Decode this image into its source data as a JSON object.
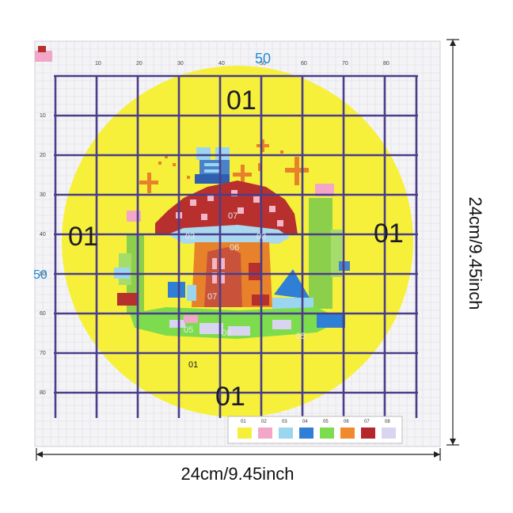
{
  "pattern": {
    "top_marker": "50",
    "left_marker": "50",
    "ruler_labels_top": [
      "10",
      "20",
      "30",
      "40",
      "50",
      "60",
      "70",
      "80"
    ],
    "ruler_labels_left": [
      "10",
      "20",
      "30",
      "40",
      "50",
      "60",
      "70",
      "80"
    ],
    "region_labels": {
      "top": "01",
      "left": "01",
      "right": "01",
      "bottom": "01",
      "bottom_small": "01",
      "cap_top": "07",
      "cap_left": "03",
      "cap_right": "03",
      "door_top": "06",
      "door": "07",
      "ground_left": "05",
      "ground_mid": "08",
      "ground_right": "05"
    },
    "palette": {
      "labels": [
        "01",
        "02",
        "03",
        "04",
        "05",
        "06",
        "07",
        "08"
      ],
      "colors": [
        "#f5ef3a",
        "#f2a7c8",
        "#9ad6f0",
        "#2f7fd6",
        "#7ddc4d",
        "#f08a2c",
        "#b3262b",
        "#d9d4ef"
      ]
    }
  },
  "dimensions": {
    "width_label": "24cm/9.45inch",
    "height_label": "24cm/9.45inch"
  },
  "colors": {
    "yellow": "#f6f03a",
    "grid": "#4a3d8a",
    "cap_red": "#b8302e",
    "cap_spot": "#f3b6c8",
    "door_orange": "#e8822a",
    "stem_blue": "#a9d8ef"
  }
}
